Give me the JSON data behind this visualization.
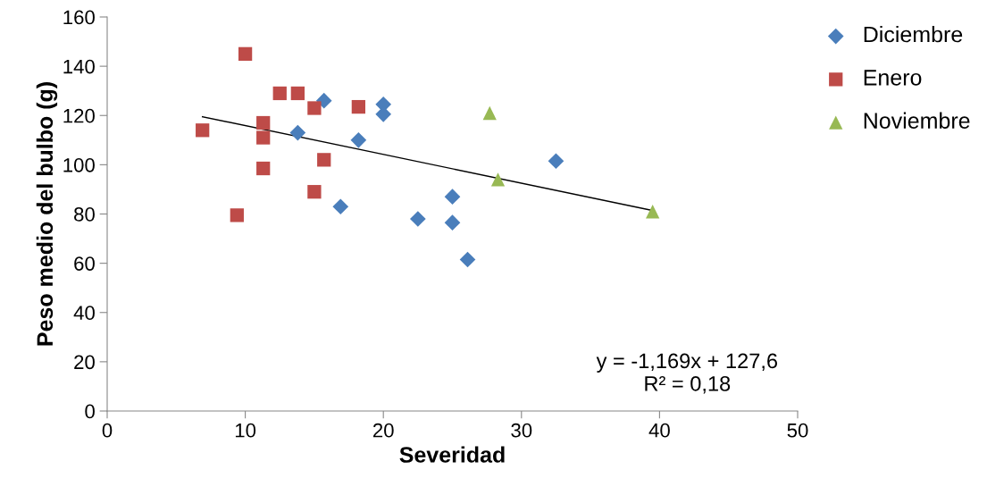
{
  "chart_data": {
    "type": "scatter",
    "xlabel": "Severidad",
    "ylabel": "Peso medio del bulbo (g)",
    "xlim": [
      0,
      50
    ],
    "xticks": [
      0,
      10,
      20,
      30,
      40,
      50
    ],
    "ylim": [
      0,
      160
    ],
    "yticks": [
      0,
      20,
      40,
      60,
      80,
      100,
      120,
      140,
      160
    ],
    "grid": false,
    "legend": "right",
    "series": [
      {
        "name": "Diciembre",
        "color": "#4a7ebb",
        "marker": "diamond",
        "x": [
          15.7,
          20.0,
          20.0,
          13.8,
          18.2,
          16.9,
          22.5,
          25.0,
          25.0,
          26.1,
          32.5
        ],
        "values": [
          126,
          124.5,
          120.5,
          113,
          110,
          83,
          78,
          87,
          76.5,
          61.5,
          101.5
        ]
      },
      {
        "name": "Enero",
        "color": "#be4b48",
        "marker": "square",
        "x": [
          10.0,
          6.9,
          12.5,
          13.8,
          11.3,
          11.3,
          11.3,
          15.0,
          18.2,
          15.7,
          15.0,
          9.4
        ],
        "values": [
          145,
          114,
          129,
          129,
          117,
          111,
          98.5,
          123,
          123.5,
          102,
          89,
          79.5
        ]
      },
      {
        "name": "Noviembre",
        "color": "#98b954",
        "marker": "triangle",
        "x": [
          27.7,
          28.3,
          39.5
        ],
        "values": [
          121,
          94,
          81
        ]
      },
      {
        "type": "line",
        "color": "#000000",
        "marker": "none",
        "x": [
          6.9,
          39.5
        ],
        "values": [
          119.5,
          81.4
        ]
      }
    ],
    "annotations": [
      "y = -1,169x + 127,6\nR² = 0,18"
    ]
  }
}
